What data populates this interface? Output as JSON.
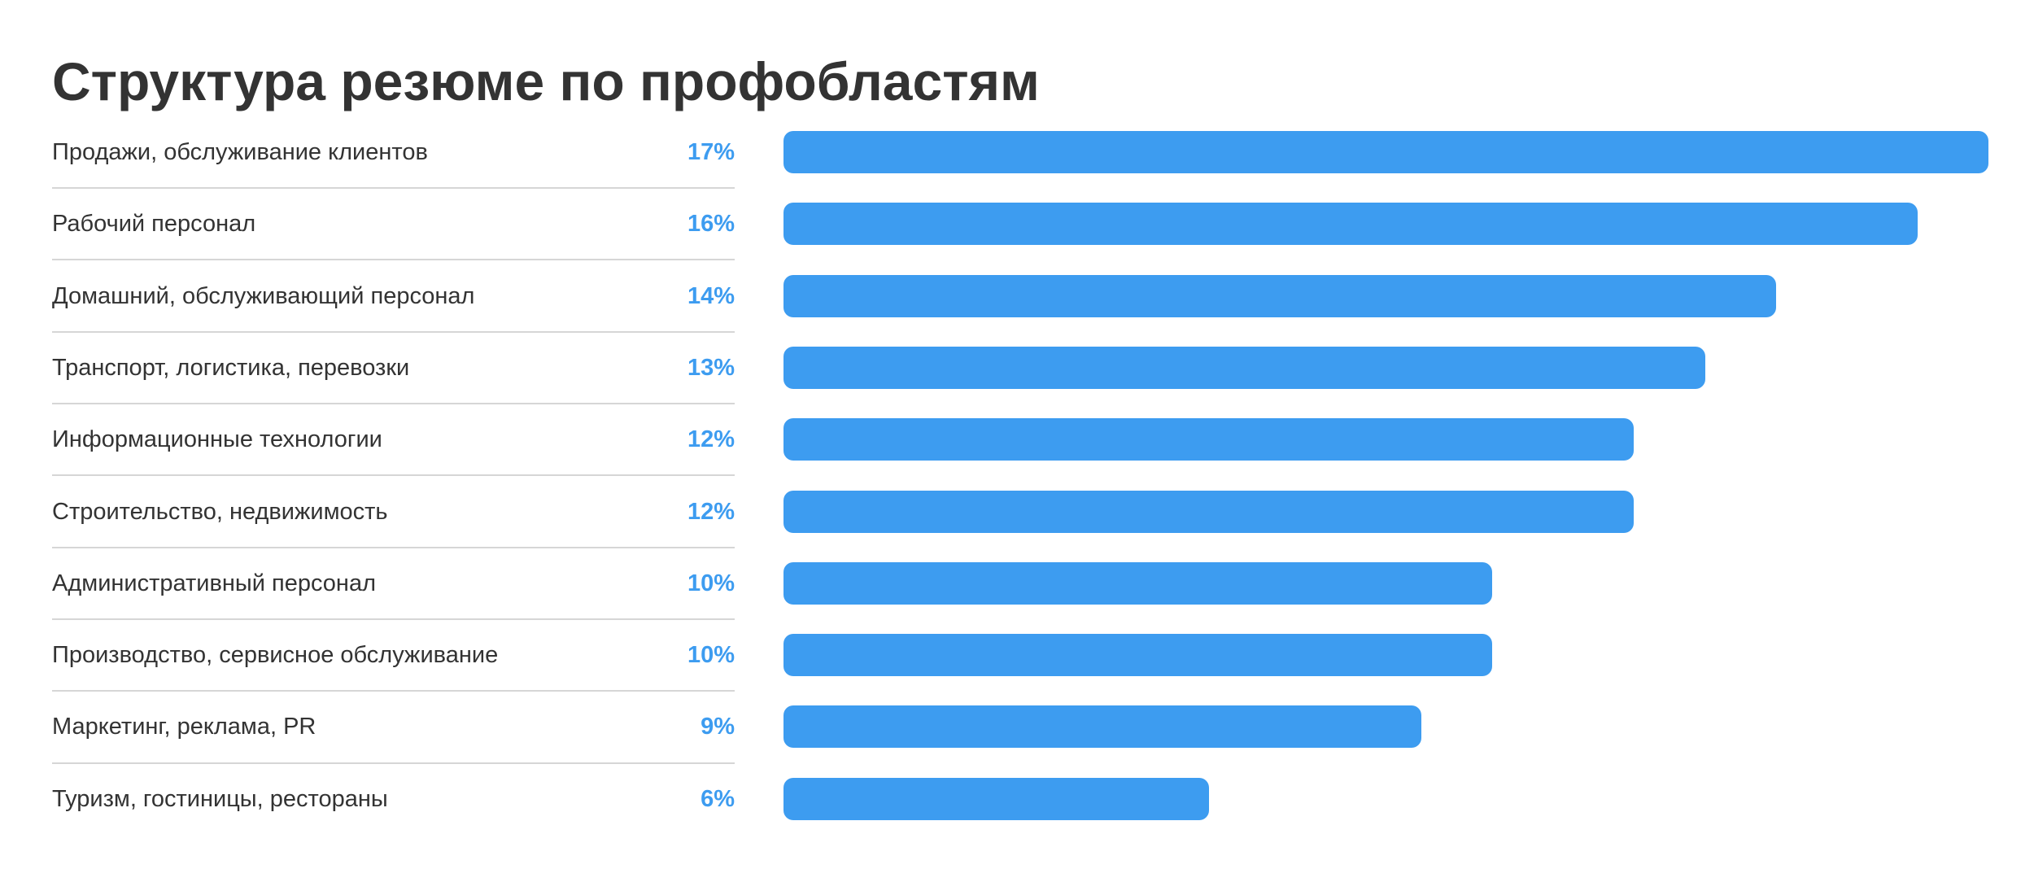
{
  "chart_data": {
    "type": "bar",
    "orientation": "horizontal",
    "title": "Структура резюме по профобластям",
    "categories": [
      "Продажи, обслуживание клиентов",
      "Рабочий персонал",
      "Домашний, обслуживающий персонал",
      "Транспорт, логистика, перевозки",
      "Информационные технологии",
      "Строительство, недвижимость",
      "Административный персонал",
      "Производство, сервисное обслуживание",
      "Маркетинг, реклама, PR",
      "Туризм, гостиницы, рестораны"
    ],
    "values": [
      17,
      16,
      14,
      13,
      12,
      12,
      10,
      10,
      9,
      6
    ],
    "value_labels": [
      "17%",
      "16%",
      "14%",
      "13%",
      "12%",
      "12%",
      "10%",
      "10%",
      "9%",
      "6%"
    ],
    "unit": "%",
    "xlim": [
      0,
      17
    ],
    "bar_color": "#3d9cf0",
    "value_label_color": "#3d9cf0",
    "grid": false,
    "legend": "none"
  }
}
